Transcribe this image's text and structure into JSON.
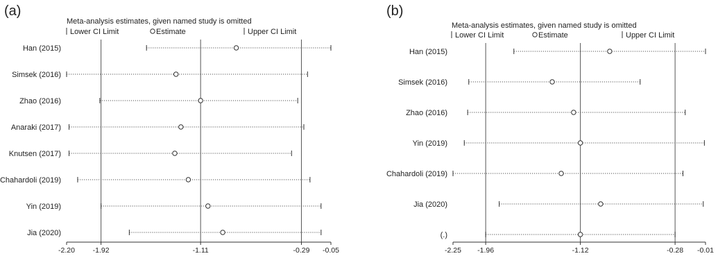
{
  "chart_data": [
    {
      "type": "forest",
      "panel_label": "(a)",
      "title": "Meta-analysis estimates, given named study is omitted",
      "legend": [
        "Lower CI Limit",
        "Estimate",
        "Upper CI Limit"
      ],
      "xlim": [
        -2.2,
        -0.05
      ],
      "xticks": [
        "-2.20",
        "-1.92",
        "-1.11",
        "-0.29",
        "-0.05"
      ],
      "xtick_values": [
        -2.2,
        -1.92,
        -1.11,
        -0.29,
        -0.05
      ],
      "ref_lines": [
        -1.92,
        -1.11,
        -0.29
      ],
      "studies": [
        {
          "label": "Han (2015)",
          "lower": -1.55,
          "estimate": -0.82,
          "upper": -0.05
        },
        {
          "label": "Simsek (2016)",
          "lower": -2.2,
          "estimate": -1.31,
          "upper": -0.24
        },
        {
          "label": "Zhao (2016)",
          "lower": -1.93,
          "estimate": -1.11,
          "upper": -0.32
        },
        {
          "label": "Anaraki (2017)",
          "lower": -2.18,
          "estimate": -1.27,
          "upper": -0.27
        },
        {
          "label": "Knutsen (2017)",
          "lower": -2.18,
          "estimate": -1.32,
          "upper": -0.37
        },
        {
          "label": "Chahardoli (2019)",
          "lower": -2.11,
          "estimate": -1.21,
          "upper": -0.22
        },
        {
          "label": "Yin (2019)",
          "lower": -1.92,
          "estimate": -1.05,
          "upper": -0.13
        },
        {
          "label": "Jia (2020)",
          "lower": -1.69,
          "estimate": -0.93,
          "upper": -0.13
        }
      ]
    },
    {
      "type": "forest",
      "panel_label": "(b)",
      "title": "Meta-analysis estimates, given named study is omitted",
      "legend": [
        "Lower CI Limit",
        "Estimate",
        "Upper CI Limit"
      ],
      "xlim": [
        -2.25,
        -0.01
      ],
      "xticks": [
        "-2.25",
        "-1.96",
        "-1.12",
        "-0.28",
        "-0.01"
      ],
      "xtick_values": [
        -2.25,
        -1.96,
        -1.12,
        -0.28,
        -0.01
      ],
      "ref_lines": [
        -1.96,
        -1.12,
        -0.28
      ],
      "studies": [
        {
          "label": "Han (2015)",
          "lower": -1.71,
          "estimate": -0.86,
          "upper": -0.01
        },
        {
          "label": "Simsek (2016)",
          "lower": -2.11,
          "estimate": -1.37,
          "upper": -0.59
        },
        {
          "label": "Zhao (2016)",
          "lower": -2.12,
          "estimate": -1.18,
          "upper": -0.19
        },
        {
          "label": "Yin (2019)",
          "lower": -2.15,
          "estimate": -1.12,
          "upper": -0.02
        },
        {
          "label": "Chahardoli (2019)",
          "lower": -2.25,
          "estimate": -1.29,
          "upper": -0.21
        },
        {
          "label": "Jia (2020)",
          "lower": -1.84,
          "estimate": -0.94,
          "upper": -0.03
        },
        {
          "label": "(.)",
          "lower": -1.96,
          "estimate": -1.12,
          "upper": -0.28
        }
      ]
    }
  ]
}
